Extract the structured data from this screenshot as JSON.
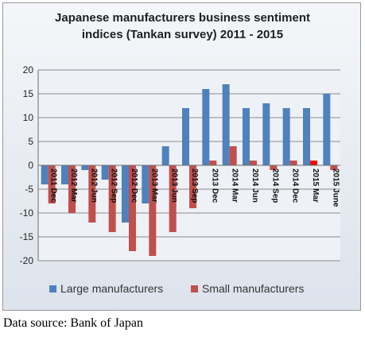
{
  "title_line1": "Japanese manufacturers business sentiment",
  "title_line2": "indices  (Tankan survey) 2011 - 2015",
  "source": "Data source: Bank of Japan",
  "chart_data": {
    "type": "bar",
    "title": "Japanese manufacturers business sentiment indices  (Tankan survey) 2011 - 2015",
    "categories": [
      "2011 Dec",
      "2012 Mar",
      "2012 Jun",
      "2012 Sep",
      "2012 Dec",
      "2013 Mar",
      "2013 Jun",
      "2013 Sep",
      "2013 Dec",
      "2014 Mar",
      "2014 Jun",
      "2014 Sep",
      "2014 Dec",
      "2015 Mar",
      "2015 June"
    ],
    "series": [
      {
        "name": "Large manufacturers",
        "color": "#4f81bd",
        "values": [
          -4,
          -4,
          -1,
          -3,
          -12,
          -8,
          4,
          12,
          16,
          17,
          12,
          13,
          12,
          12,
          15
        ]
      },
      {
        "name": "Small manufacturers",
        "color": "#c0504d",
        "values": [
          -8,
          -10,
          -12,
          -14,
          -18,
          -19,
          -14,
          -9,
          1,
          4,
          1,
          -1,
          1,
          1,
          -1
        ]
      }
    ],
    "highlight": {
      "series": 1,
      "index": 13,
      "color": "#ff0000"
    },
    "yticks": [
      -20,
      -15,
      -10,
      -5,
      0,
      5,
      10,
      15,
      20
    ],
    "ylim": [
      -20,
      20
    ],
    "grid": true,
    "legend": "bottom"
  }
}
